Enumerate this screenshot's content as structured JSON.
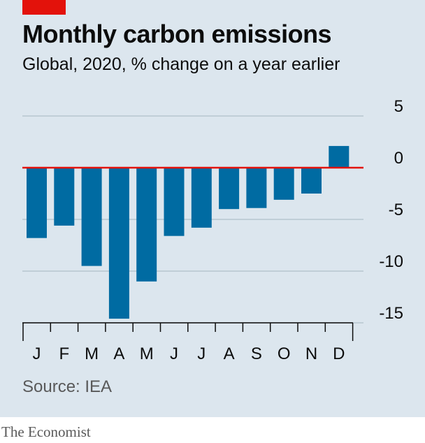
{
  "colors": {
    "bar": "#006ba2",
    "zero_line": "#e3120b",
    "grid": "#b7c6cf",
    "tag": "#e3120b"
  },
  "header": {
    "title": "Monthly carbon emissions",
    "subtitle": "Global, 2020, % change on a year earlier"
  },
  "footer": {
    "source": "Source: IEA",
    "brand": "The Economist"
  },
  "chart_data": {
    "type": "bar",
    "title": "Monthly carbon emissions",
    "subtitle": "Global, 2020, % change on a year earlier",
    "categories": [
      "J",
      "F",
      "M",
      "A",
      "M",
      "J",
      "J",
      "A",
      "S",
      "O",
      "N",
      "D"
    ],
    "values": [
      -6.8,
      -5.6,
      -9.5,
      -14.6,
      -11.0,
      -6.6,
      -5.8,
      -4.0,
      -3.9,
      -3.1,
      -2.5,
      2.1
    ],
    "ylim": [
      -15,
      5
    ],
    "yticks": [
      5,
      0,
      -5,
      -10,
      -15
    ],
    "ytick_labels": [
      "5",
      "0",
      "-5",
      "-10",
      "-15"
    ],
    "grid": true,
    "axis_side": "right"
  }
}
